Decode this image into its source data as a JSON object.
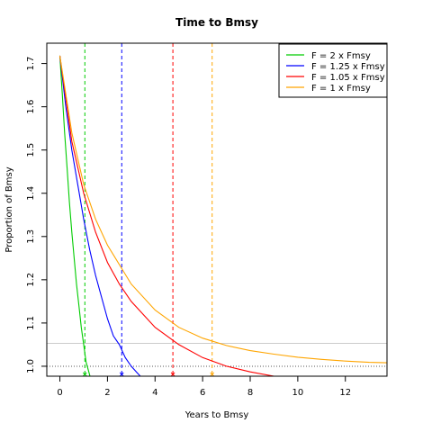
{
  "chart_data": {
    "type": "line",
    "title": "Time to Bmsy",
    "xlabel": "Years to Bmsy",
    "ylabel": "Proportion of Bmsy",
    "xlim": [
      -0.55,
      13.75
    ],
    "ylim": [
      0.977,
      1.747
    ],
    "x_ticks": [
      0,
      2,
      4,
      6,
      8,
      10,
      12
    ],
    "y_ticks": [
      1.0,
      1.1,
      1.2,
      1.3,
      1.4,
      1.5,
      1.6,
      1.7
    ],
    "x_tick_labels": [
      "0",
      "2",
      "4",
      "6",
      "8",
      "10",
      "12"
    ],
    "y_tick_labels": [
      "1.0",
      "1.1",
      "1.2",
      "1.3",
      "1.4",
      "1.5",
      "1.6",
      "1.7"
    ],
    "start_value": 1.718,
    "legend_position": "top-right",
    "series": [
      {
        "name": "F = 2 x Fmsy",
        "color": "#00cc00",
        "x": [
          0,
          0.1,
          0.2,
          0.3,
          0.4,
          0.5,
          0.6,
          0.7,
          0.8,
          0.9,
          1.0,
          1.1,
          1.2,
          1.3
        ],
        "y": [
          1.718,
          1.63,
          1.54,
          1.46,
          1.38,
          1.31,
          1.25,
          1.19,
          1.14,
          1.09,
          1.05,
          1.01,
          0.99,
          0.97
        ],
        "vline_x": 1.05
      },
      {
        "name": "F = 1.25 x Fmsy",
        "color": "#0000ff",
        "x": [
          0,
          0.25,
          0.5,
          0.75,
          1.0,
          1.25,
          1.5,
          1.75,
          2.0,
          2.25,
          2.5,
          2.75,
          3.0,
          3.25,
          3.5
        ],
        "y": [
          1.718,
          1.6,
          1.5,
          1.42,
          1.34,
          1.27,
          1.21,
          1.16,
          1.11,
          1.07,
          1.05,
          1.02,
          1.0,
          0.985,
          0.97
        ],
        "vline_x": 2.6
      },
      {
        "name": "F = 1.05 x Fmsy",
        "color": "#ff0000",
        "x": [
          0,
          0.5,
          1,
          1.5,
          2,
          2.5,
          3,
          4,
          5,
          6,
          7,
          8,
          9,
          9.5
        ],
        "y": [
          1.718,
          1.52,
          1.4,
          1.31,
          1.24,
          1.19,
          1.15,
          1.09,
          1.05,
          1.02,
          1.0,
          0.987,
          0.977,
          0.97
        ],
        "vline_x": 4.75
      },
      {
        "name": "F = 1 x Fmsy",
        "color": "#ffa500",
        "x": [
          0,
          0.5,
          1,
          1.5,
          2,
          3,
          4,
          5,
          6,
          7,
          8,
          9,
          10,
          11,
          12,
          13,
          13.75
        ],
        "y": [
          1.718,
          1.54,
          1.42,
          1.34,
          1.28,
          1.19,
          1.13,
          1.09,
          1.065,
          1.048,
          1.036,
          1.028,
          1.021,
          1.016,
          1.012,
          1.009,
          1.008
        ],
        "vline_x": 6.4
      }
    ],
    "hlines": [
      {
        "y": 1.0,
        "color": "#555555",
        "style": "dotted"
      },
      {
        "y": 1.053,
        "color": "#cccccc",
        "style": "solid"
      }
    ]
  }
}
